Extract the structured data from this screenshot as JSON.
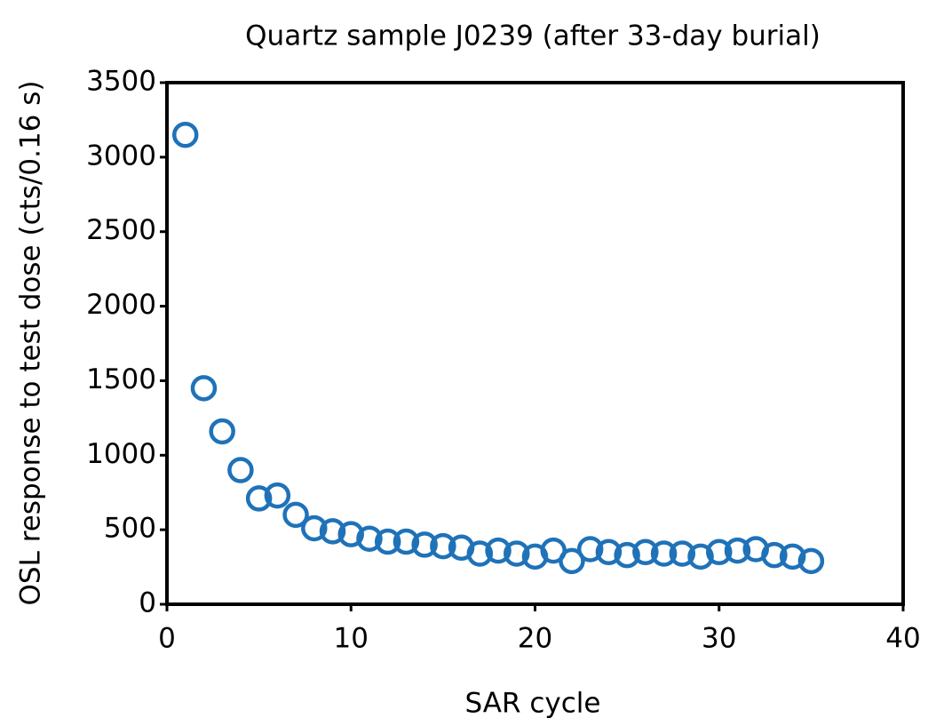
{
  "chart_data": {
    "type": "scatter",
    "title": "Quartz sample J0239 (after 33-day burial)",
    "x_label": "SAR cycle",
    "y_label": "OSL response to test dose (cts/0.16 s)",
    "x": [
      1,
      2,
      3,
      4,
      5,
      6,
      7,
      8,
      9,
      10,
      11,
      12,
      13,
      14,
      15,
      16,
      17,
      18,
      19,
      20,
      21,
      22,
      23,
      24,
      25,
      26,
      27,
      28,
      29,
      30,
      31,
      32,
      33,
      34,
      35
    ],
    "values": [
      3150,
      1450,
      1160,
      900,
      710,
      730,
      600,
      510,
      490,
      470,
      440,
      420,
      420,
      400,
      390,
      380,
      340,
      360,
      340,
      320,
      360,
      290,
      370,
      350,
      330,
      350,
      340,
      340,
      320,
      350,
      360,
      370,
      330,
      320,
      290
    ],
    "color": "#1f72b8",
    "xlim": [
      0,
      40
    ],
    "xticks": [
      0,
      10,
      20,
      30,
      40
    ],
    "ylim": [
      0,
      3500
    ],
    "yticks": [
      0,
      500,
      1000,
      1500,
      2000,
      2500,
      3000,
      3500
    ],
    "grid": false
  }
}
